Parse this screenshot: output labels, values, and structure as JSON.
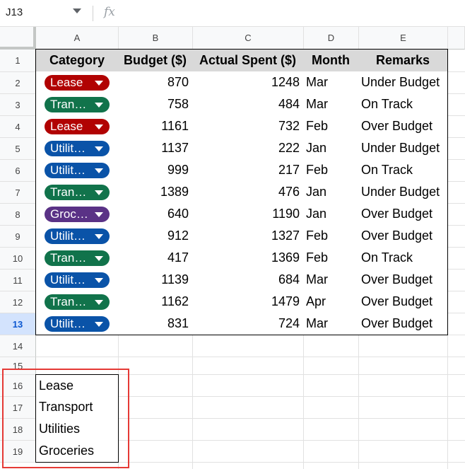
{
  "name_box": "J13",
  "formula_icon": "fx",
  "columns": [
    "A",
    "B",
    "C",
    "D",
    "E"
  ],
  "rows": [
    "1",
    "2",
    "3",
    "4",
    "5",
    "6",
    "7",
    "8",
    "9",
    "10",
    "11",
    "12",
    "13",
    "14",
    "15",
    "16",
    "17",
    "18",
    "19"
  ],
  "active_row": "13",
  "header": [
    "Category",
    "Budget ($)",
    "Actual Spent ($)",
    "Month",
    "Remarks"
  ],
  "category_colors": {
    "Lease": "#b10202",
    "Transport": "#11734b",
    "Utilities": "#0a53a8",
    "Groceries": "#5a3286"
  },
  "data": [
    {
      "category": "Lease",
      "chip": "Lease",
      "budget": "870",
      "spent": "1248",
      "month": "Mar",
      "remarks": "Under Budget"
    },
    {
      "category": "Transport",
      "chip": "Tran…",
      "budget": "758",
      "spent": "484",
      "month": "Mar",
      "remarks": "On Track"
    },
    {
      "category": "Lease",
      "chip": "Lease",
      "budget": "1161",
      "spent": "732",
      "month": "Feb",
      "remarks": "Over Budget"
    },
    {
      "category": "Utilities",
      "chip": "Utilit…",
      "budget": "1137",
      "spent": "222",
      "month": "Jan",
      "remarks": "Under Budget"
    },
    {
      "category": "Utilities",
      "chip": "Utilit…",
      "budget": "999",
      "spent": "217",
      "month": "Feb",
      "remarks": "On Track"
    },
    {
      "category": "Transport",
      "chip": "Tran…",
      "budget": "1389",
      "spent": "476",
      "month": "Jan",
      "remarks": "Under Budget"
    },
    {
      "category": "Groceries",
      "chip": "Groc…",
      "budget": "640",
      "spent": "1190",
      "month": "Jan",
      "remarks": "Over Budget"
    },
    {
      "category": "Utilities",
      "chip": "Utilit…",
      "budget": "912",
      "spent": "1327",
      "month": "Feb",
      "remarks": "Over Budget"
    },
    {
      "category": "Transport",
      "chip": "Tran…",
      "budget": "417",
      "spent": "1369",
      "month": "Feb",
      "remarks": "On Track"
    },
    {
      "category": "Utilities",
      "chip": "Utilit…",
      "budget": "1139",
      "spent": "684",
      "month": "Mar",
      "remarks": "Over Budget"
    },
    {
      "category": "Transport",
      "chip": "Tran…",
      "budget": "1162",
      "spent": "1479",
      "month": "Apr",
      "remarks": "Over Budget"
    },
    {
      "category": "Utilities",
      "chip": "Utilit…",
      "budget": "831",
      "spent": "724",
      "month": "Mar",
      "remarks": "Over Budget"
    }
  ],
  "list_items": [
    "Lease",
    "Transport",
    "Utilities",
    "Groceries"
  ],
  "highlight_color": "#e53935"
}
